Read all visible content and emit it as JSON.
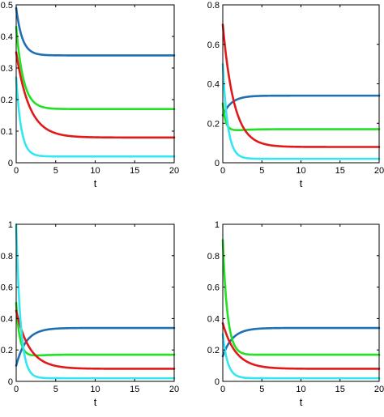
{
  "chart_data": [
    {
      "type": "line",
      "xlabel": "t",
      "ylabel": "",
      "xlim": [
        0,
        20
      ],
      "ylim": [
        0,
        0.5
      ],
      "xticks": [
        0,
        5,
        10,
        15,
        20
      ],
      "yticks": [
        0,
        0.1,
        0.2,
        0.3,
        0.4,
        0.5
      ],
      "xtick_labels": [
        "0",
        "5",
        "10",
        "15",
        "20"
      ],
      "ytick_labels": [
        "0",
        "0.1",
        "0.2",
        "0.3",
        "0.4",
        "0.5"
      ],
      "grid": false,
      "series": [
        {
          "color": "#1f6fb4",
          "start": 0.49,
          "end": 0.34,
          "rate": 1.3
        },
        {
          "color": "#22e022",
          "start": 0.43,
          "end": 0.17,
          "rate": 1.1
        },
        {
          "color": "#e01a1a",
          "start": 0.35,
          "end": 0.08,
          "rate": 0.6
        },
        {
          "color": "#33e6f0",
          "start": 0.27,
          "end": 0.02,
          "rate": 1.6
        }
      ]
    },
    {
      "type": "line",
      "xlabel": "t",
      "ylabel": "",
      "xlim": [
        0,
        20
      ],
      "ylim": [
        0,
        0.8
      ],
      "xticks": [
        0,
        5,
        10,
        15,
        20
      ],
      "yticks": [
        0,
        0.2,
        0.4,
        0.6,
        0.8
      ],
      "xtick_labels": [
        "0",
        "5",
        "10",
        "15",
        "20"
      ],
      "ytick_labels": [
        "0",
        "0.2",
        "0.4",
        "0.6",
        "0.8"
      ],
      "grid": false,
      "series": [
        {
          "color": "#1f6fb4",
          "start": 0.24,
          "end": 0.34,
          "rate": 0.9
        },
        {
          "color": "#22e022",
          "start": 0.3,
          "end": 0.17,
          "rate": 1.2,
          "dip": 0.1
        },
        {
          "color": "#e01a1a",
          "start": 0.7,
          "end": 0.08,
          "rate": 0.7
        },
        {
          "color": "#33e6f0",
          "start": 0.5,
          "end": 0.02,
          "rate": 1.6
        }
      ]
    },
    {
      "type": "line",
      "xlabel": "t",
      "ylabel": "",
      "xlim": [
        0,
        20
      ],
      "ylim": [
        0,
        1
      ],
      "xticks": [
        0,
        5,
        10,
        15,
        20
      ],
      "yticks": [
        0,
        0.2,
        0.4,
        0.6,
        0.8,
        1
      ],
      "xtick_labels": [
        "0",
        "5",
        "10",
        "15",
        "20"
      ],
      "ytick_labels": [
        "0",
        "0.2",
        "0.4",
        "0.6",
        "0.8",
        "1"
      ],
      "grid": false,
      "series": [
        {
          "color": "#1f6fb4",
          "start": 0.1,
          "end": 0.34,
          "rate": 0.8
        },
        {
          "color": "#22e022",
          "start": 0.5,
          "end": 0.17,
          "rate": 1.5,
          "dip": 0.12
        },
        {
          "color": "#e01a1a",
          "start": 0.45,
          "end": 0.08,
          "rate": 0.6
        },
        {
          "color": "#33e6f0",
          "start": 1.0,
          "end": 0.02,
          "rate": 1.8
        }
      ]
    },
    {
      "type": "line",
      "xlabel": "t",
      "ylabel": "",
      "xlim": [
        0,
        20
      ],
      "ylim": [
        0,
        1
      ],
      "xticks": [
        0,
        5,
        10,
        15,
        20
      ],
      "yticks": [
        0,
        0.2,
        0.4,
        0.6,
        0.8,
        1
      ],
      "xtick_labels": [
        "0",
        "5",
        "10",
        "15",
        "20"
      ],
      "ytick_labels": [
        "0",
        "0.2",
        "0.4",
        "0.6",
        "0.8",
        "1"
      ],
      "grid": false,
      "series": [
        {
          "color": "#1f6fb4",
          "start": 0.16,
          "end": 0.34,
          "rate": 0.8
        },
        {
          "color": "#22e022",
          "start": 0.9,
          "end": 0.17,
          "rate": 1.5,
          "dip": 0.07
        },
        {
          "color": "#e01a1a",
          "start": 0.37,
          "end": 0.08,
          "rate": 0.6
        },
        {
          "color": "#33e6f0",
          "start": 0.3,
          "end": 0.02,
          "rate": 1.6
        }
      ]
    }
  ]
}
